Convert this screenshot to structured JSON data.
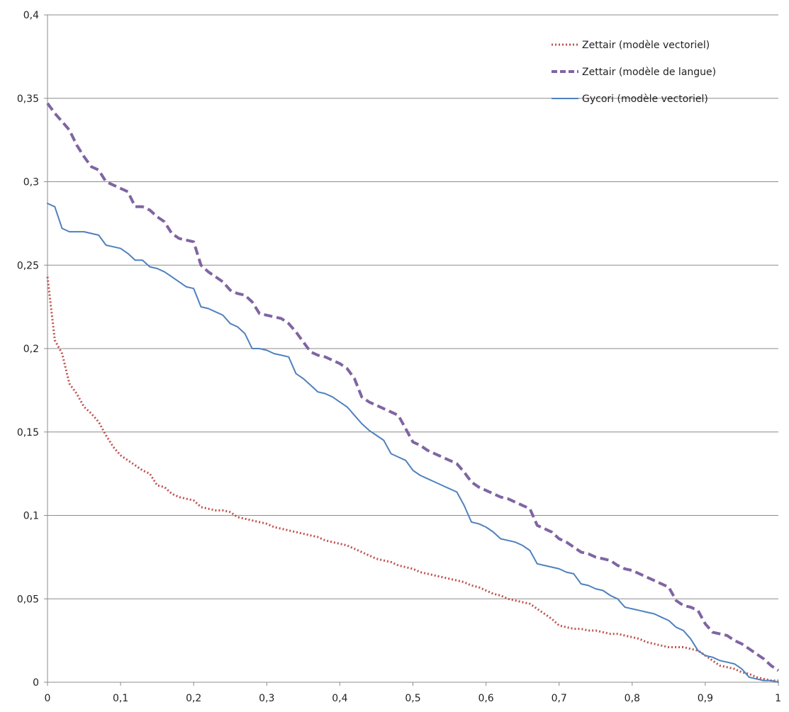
{
  "chart_data": {
    "type": "line",
    "title": "",
    "xlabel": "",
    "ylabel": "",
    "xlim": [
      0,
      1
    ],
    "ylim": [
      0,
      0.4
    ],
    "grid": "horizontal",
    "legend_position": "top-right",
    "x_ticks": [
      "0",
      "0,1",
      "0,2",
      "0,3",
      "0,4",
      "0,5",
      "0,6",
      "0,7",
      "0,8",
      "0,9",
      "1"
    ],
    "y_ticks": [
      "0",
      "0,05",
      "0,1",
      "0,15",
      "0,2",
      "0,25",
      "0,3",
      "0,35",
      "0,4"
    ],
    "x": [
      0,
      0.01,
      0.02,
      0.03,
      0.04,
      0.05,
      0.06,
      0.07,
      0.08,
      0.09,
      0.1,
      0.11,
      0.12,
      0.13,
      0.14,
      0.15,
      0.16,
      0.17,
      0.18,
      0.19,
      0.2,
      0.21,
      0.22,
      0.23,
      0.24,
      0.25,
      0.26,
      0.27,
      0.28,
      0.29,
      0.3,
      0.31,
      0.32,
      0.33,
      0.34,
      0.35,
      0.36,
      0.37,
      0.38,
      0.39,
      0.4,
      0.41,
      0.42,
      0.43,
      0.44,
      0.45,
      0.46,
      0.47,
      0.48,
      0.49,
      0.5,
      0.51,
      0.52,
      0.53,
      0.54,
      0.55,
      0.56,
      0.57,
      0.58,
      0.59,
      0.6,
      0.61,
      0.62,
      0.63,
      0.64,
      0.65,
      0.66,
      0.67,
      0.68,
      0.69,
      0.7,
      0.71,
      0.72,
      0.73,
      0.74,
      0.75,
      0.76,
      0.77,
      0.78,
      0.79,
      0.8,
      0.81,
      0.82,
      0.83,
      0.84,
      0.85,
      0.86,
      0.87,
      0.88,
      0.89,
      0.9,
      0.91,
      0.92,
      0.93,
      0.94,
      0.95,
      0.96,
      0.97,
      0.98,
      0.99,
      1
    ],
    "series": [
      {
        "name": "Zettair (modèle vectoriel)",
        "color": "#c0504d",
        "style": "dotted",
        "values": [
          0.243,
          0.205,
          0.197,
          0.179,
          0.173,
          0.165,
          0.161,
          0.156,
          0.148,
          0.141,
          0.136,
          0.133,
          0.13,
          0.127,
          0.125,
          0.118,
          0.117,
          0.113,
          0.111,
          0.11,
          0.109,
          0.105,
          0.104,
          0.103,
          0.103,
          0.102,
          0.099,
          0.098,
          0.097,
          0.096,
          0.095,
          0.093,
          0.092,
          0.091,
          0.09,
          0.089,
          0.088,
          0.087,
          0.085,
          0.084,
          0.083,
          0.082,
          0.08,
          0.078,
          0.076,
          0.074,
          0.073,
          0.072,
          0.07,
          0.069,
          0.068,
          0.066,
          0.065,
          0.064,
          0.063,
          0.062,
          0.061,
          0.06,
          0.058,
          0.057,
          0.055,
          0.053,
          0.052,
          0.05,
          0.049,
          0.048,
          0.047,
          0.044,
          0.041,
          0.038,
          0.034,
          0.033,
          0.032,
          0.032,
          0.031,
          0.031,
          0.03,
          0.029,
          0.029,
          0.028,
          0.027,
          0.026,
          0.024,
          0.023,
          0.022,
          0.021,
          0.021,
          0.021,
          0.02,
          0.019,
          0.016,
          0.013,
          0.01,
          0.009,
          0.008,
          0.006,
          0.005,
          0.003,
          0.002,
          0.001,
          0.001
        ]
      },
      {
        "name": "Zettair (modèle de langue)",
        "color": "#8064a2",
        "style": "dashed",
        "values": [
          0.347,
          0.341,
          0.336,
          0.331,
          0.322,
          0.315,
          0.309,
          0.307,
          0.3,
          0.298,
          0.296,
          0.294,
          0.285,
          0.285,
          0.283,
          0.279,
          0.276,
          0.269,
          0.266,
          0.265,
          0.264,
          0.25,
          0.246,
          0.243,
          0.24,
          0.235,
          0.233,
          0.232,
          0.228,
          0.221,
          0.22,
          0.219,
          0.218,
          0.215,
          0.21,
          0.204,
          0.198,
          0.196,
          0.195,
          0.193,
          0.191,
          0.188,
          0.182,
          0.171,
          0.168,
          0.166,
          0.164,
          0.162,
          0.16,
          0.152,
          0.144,
          0.142,
          0.139,
          0.137,
          0.135,
          0.133,
          0.131,
          0.126,
          0.12,
          0.117,
          0.115,
          0.113,
          0.111,
          0.11,
          0.108,
          0.106,
          0.104,
          0.094,
          0.092,
          0.09,
          0.086,
          0.084,
          0.081,
          0.078,
          0.077,
          0.075,
          0.074,
          0.073,
          0.07,
          0.068,
          0.067,
          0.065,
          0.063,
          0.061,
          0.059,
          0.057,
          0.049,
          0.046,
          0.045,
          0.043,
          0.035,
          0.03,
          0.029,
          0.028,
          0.025,
          0.023,
          0.02,
          0.017,
          0.014,
          0.01,
          0.007
        ]
      },
      {
        "name": "Gycori (modèle vectoriel)",
        "color": "#4f81bd",
        "style": "solid",
        "values": [
          0.287,
          0.285,
          0.272,
          0.27,
          0.27,
          0.27,
          0.269,
          0.268,
          0.262,
          0.261,
          0.26,
          0.257,
          0.253,
          0.253,
          0.249,
          0.248,
          0.246,
          0.243,
          0.24,
          0.237,
          0.236,
          0.225,
          0.224,
          0.222,
          0.22,
          0.215,
          0.213,
          0.209,
          0.2,
          0.2,
          0.199,
          0.197,
          0.196,
          0.195,
          0.185,
          0.182,
          0.178,
          0.174,
          0.173,
          0.171,
          0.168,
          0.165,
          0.16,
          0.155,
          0.151,
          0.148,
          0.145,
          0.137,
          0.135,
          0.133,
          0.127,
          0.124,
          0.122,
          0.12,
          0.118,
          0.116,
          0.114,
          0.106,
          0.096,
          0.095,
          0.093,
          0.09,
          0.086,
          0.085,
          0.084,
          0.082,
          0.079,
          0.071,
          0.07,
          0.069,
          0.068,
          0.066,
          0.065,
          0.059,
          0.058,
          0.056,
          0.055,
          0.052,
          0.05,
          0.045,
          0.044,
          0.043,
          0.042,
          0.041,
          0.039,
          0.037,
          0.033,
          0.031,
          0.026,
          0.019,
          0.016,
          0.015,
          0.013,
          0.012,
          0.011,
          0.008,
          0.003,
          0.002,
          0.001,
          0.001,
          0
        ]
      }
    ]
  }
}
